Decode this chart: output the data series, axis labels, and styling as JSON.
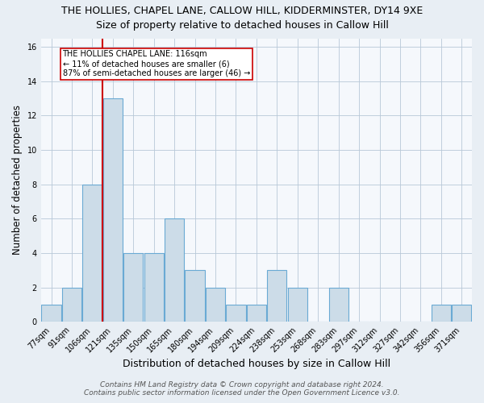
{
  "title": "THE HOLLIES, CHAPEL LANE, CALLOW HILL, KIDDERMINSTER, DY14 9XE",
  "subtitle": "Size of property relative to detached houses in Callow Hill",
  "xlabel": "Distribution of detached houses by size in Callow Hill",
  "ylabel": "Number of detached properties",
  "footer_line1": "Contains HM Land Registry data © Crown copyright and database right 2024.",
  "footer_line2": "Contains public sector information licensed under the Open Government Licence v3.0.",
  "bin_labels": [
    "77sqm",
    "91sqm",
    "106sqm",
    "121sqm",
    "135sqm",
    "150sqm",
    "165sqm",
    "180sqm",
    "194sqm",
    "209sqm",
    "224sqm",
    "238sqm",
    "253sqm",
    "268sqm",
    "283sqm",
    "297sqm",
    "312sqm",
    "327sqm",
    "342sqm",
    "356sqm",
    "371sqm"
  ],
  "bar_heights": [
    1,
    2,
    8,
    13,
    4,
    4,
    6,
    3,
    2,
    1,
    1,
    3,
    2,
    0,
    2,
    0,
    0,
    0,
    0,
    1,
    1
  ],
  "bar_color": "#ccdce8",
  "bar_edgecolor": "#6aaad4",
  "reference_line_color": "#cc0000",
  "annotation_text": "THE HOLLIES CHAPEL LANE: 116sqm\n← 11% of detached houses are smaller (6)\n87% of semi-detached houses are larger (46) →",
  "ylim": [
    0,
    16.5
  ],
  "yticks": [
    0,
    2,
    4,
    6,
    8,
    10,
    12,
    14,
    16
  ],
  "background_color": "#e8eef4",
  "plot_background_color": "#f5f8fc",
  "grid_color": "#b8c8d8",
  "title_fontsize": 9,
  "subtitle_fontsize": 9,
  "xlabel_fontsize": 9,
  "ylabel_fontsize": 8.5,
  "tick_fontsize": 7,
  "annotation_fontsize": 7,
  "footer_fontsize": 6.5
}
